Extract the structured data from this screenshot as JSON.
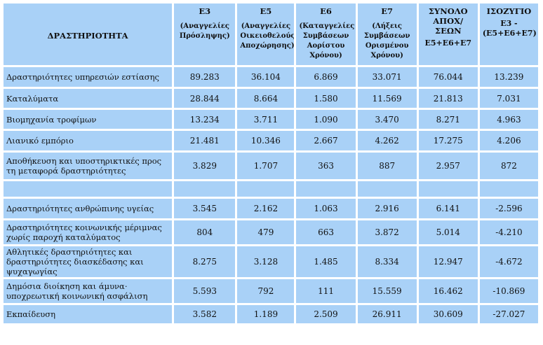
{
  "header": {
    "activity": "ΔΡΑΣΤΗΡΙΟΤΗΤΑ",
    "cols": [
      {
        "code": "Ε3",
        "desc": "(Αναγγελίες Πρόσληψης)"
      },
      {
        "code": "Ε5",
        "desc": "(Αναγγελίες Οικειοθελούς Αποχώρησης)"
      },
      {
        "code": "Ε6",
        "desc": "(Καταγγελίες Συμβάσεων Αορίστου Χρόνου)"
      },
      {
        "code": "Ε7",
        "desc": "(Λήξεις Συμβάσεων Ορισμένου Χρόνου)"
      },
      {
        "code": "ΣΥΝΟΛΟ ΑΠΟΧ/ΣΕΩΝ",
        "desc": "Ε5+Ε6+Ε7"
      },
      {
        "code": "ΙΣΟΖΥΓΙΟ",
        "desc": "Ε3 - (Ε5+Ε6+Ε7)"
      }
    ]
  },
  "rows_top": [
    {
      "label": "Δραστηριότητες υπηρεσιών εστίασης",
      "values": [
        "89.283",
        "36.104",
        "6.869",
        "33.071",
        "76.044",
        "13.239"
      ]
    },
    {
      "label": "Καταλύματα",
      "values": [
        "28.844",
        "8.664",
        "1.580",
        "11.569",
        "21.813",
        "7.031"
      ]
    },
    {
      "label": "Βιομηχανία τροφίμων",
      "values": [
        "13.234",
        "3.711",
        "1.090",
        "3.470",
        "8.271",
        "4.963"
      ]
    },
    {
      "label": "Λιανικό εμπόριο",
      "values": [
        "21.481",
        "10.346",
        "2.667",
        "4.262",
        "17.275",
        "4.206"
      ]
    },
    {
      "label": "Αποθήκευση και υποστηρικτικές προς τη μεταφορά δραστηριότητες",
      "values": [
        "3.829",
        "1.707",
        "363",
        "887",
        "2.957",
        "872"
      ]
    }
  ],
  "rows_bottom": [
    {
      "label": "Δραστηριότητες ανθρώπινης υγείας",
      "values": [
        "3.545",
        "2.162",
        "1.063",
        "2.916",
        "6.141",
        "-2.596"
      ]
    },
    {
      "label": "Δραστηριότητες κοινωνικής μέριμνας χωρίς παροχή καταλύματος",
      "values": [
        "804",
        "479",
        "663",
        "3.872",
        "5.014",
        "-4.210"
      ]
    },
    {
      "label": "Αθλητικές δραστηριότητες και δραστηριότητες διασκέδασης και ψυχαγωγίας",
      "values": [
        "8.275",
        "3.128",
        "1.485",
        "8.334",
        "12.947",
        "-4.672"
      ]
    },
    {
      "label": "Δημόσια διοίκηση και άμυνα· υποχρεωτική κοινωνική ασφάλιση",
      "values": [
        "5.593",
        "792",
        "111",
        "15.559",
        "16.462",
        "-10.869"
      ]
    },
    {
      "label": "Εκπαίδευση",
      "values": [
        "3.582",
        "1.189",
        "2.509",
        "26.911",
        "30.609",
        "-27.027"
      ]
    }
  ]
}
